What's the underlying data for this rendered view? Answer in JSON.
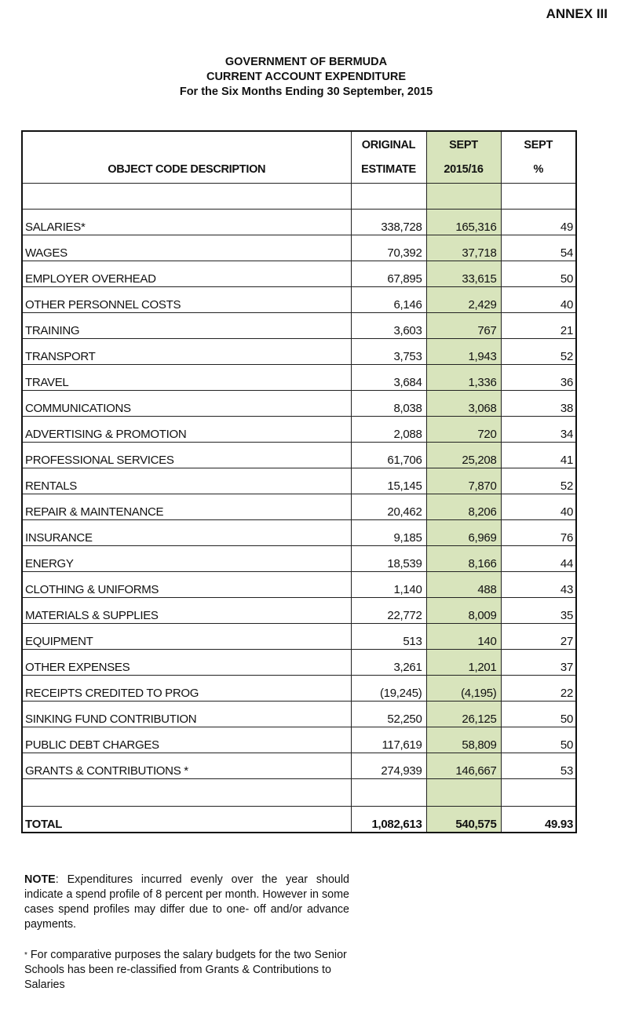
{
  "annex": "ANNEX III",
  "titles": [
    "GOVERNMENT OF BERMUDA",
    "CURRENT ACCOUNT EXPENDITURE",
    "For the Six Months Ending 30 September, 2015"
  ],
  "headers": {
    "description": "OBJECT CODE DESCRIPTION",
    "original": [
      "ORIGINAL",
      "ESTIMATE"
    ],
    "sept": [
      "SEPT",
      "2015/16"
    ],
    "pct": [
      "SEPT",
      "%"
    ]
  },
  "rows": [
    {
      "desc": "SALARIES*",
      "orig": "338,728",
      "sept": "165,316",
      "pct": "49"
    },
    {
      "desc": "WAGES",
      "orig": "70,392",
      "sept": "37,718",
      "pct": "54"
    },
    {
      "desc": "EMPLOYER OVERHEAD",
      "orig": "67,895",
      "sept": "33,615",
      "pct": "50"
    },
    {
      "desc": "OTHER PERSONNEL COSTS",
      "orig": "6,146",
      "sept": "2,429",
      "pct": "40"
    },
    {
      "desc": "TRAINING",
      "orig": "3,603",
      "sept": "767",
      "pct": "21"
    },
    {
      "desc": "TRANSPORT",
      "orig": "3,753",
      "sept": "1,943",
      "pct": "52"
    },
    {
      "desc": "TRAVEL",
      "orig": "3,684",
      "sept": "1,336",
      "pct": "36"
    },
    {
      "desc": "COMMUNICATIONS",
      "orig": "8,038",
      "sept": "3,068",
      "pct": "38"
    },
    {
      "desc": "ADVERTISING & PROMOTION",
      "orig": "2,088",
      "sept": "720",
      "pct": "34"
    },
    {
      "desc": "PROFESSIONAL SERVICES",
      "orig": "61,706",
      "sept": "25,208",
      "pct": "41"
    },
    {
      "desc": "RENTALS",
      "orig": "15,145",
      "sept": "7,870",
      "pct": "52"
    },
    {
      "desc": "REPAIR & MAINTENANCE",
      "orig": "20,462",
      "sept": "8,206",
      "pct": "40"
    },
    {
      "desc": "INSURANCE",
      "orig": "9,185",
      "sept": "6,969",
      "pct": "76"
    },
    {
      "desc": "ENERGY",
      "orig": "18,539",
      "sept": "8,166",
      "pct": "44"
    },
    {
      "desc": "CLOTHING & UNIFORMS",
      "orig": "1,140",
      "sept": "488",
      "pct": "43"
    },
    {
      "desc": "MATERIALS & SUPPLIES",
      "orig": "22,772",
      "sept": "8,009",
      "pct": "35"
    },
    {
      "desc": "EQUIPMENT",
      "orig": "513",
      "sept": "140",
      "pct": "27"
    },
    {
      "desc": "OTHER EXPENSES",
      "orig": "3,261",
      "sept": "1,201",
      "pct": "37"
    },
    {
      "desc": "RECEIPTS CREDITED TO PROG",
      "orig": "(19,245)",
      "sept": "(4,195)",
      "pct": "22"
    },
    {
      "desc": "SINKING FUND CONTRIBUTION",
      "orig": "52,250",
      "sept": "26,125",
      "pct": "50"
    },
    {
      "desc": "PUBLIC DEBT CHARGES",
      "orig": "117,619",
      "sept": "58,809",
      "pct": "50"
    },
    {
      "desc": "GRANTS & CONTRIBUTIONS *",
      "orig": "274,939",
      "sept": "146,667",
      "pct": "53"
    }
  ],
  "total": {
    "desc": "TOTAL",
    "orig": "1,082,613",
    "sept": "540,575",
    "pct": "49.93"
  },
  "note": {
    "label": "NOTE",
    "text": ": Expenditures incurred evenly over the year should indicate a spend profile of 8 percent per month. However in some cases spend profiles may differ due to one- off and/or advance payments."
  },
  "footnote": {
    "marker": "*",
    "text": " For comparative purposes the salary budgets for the two Senior Schools has been re-classified from Grants & Contributions to Salaries"
  }
}
